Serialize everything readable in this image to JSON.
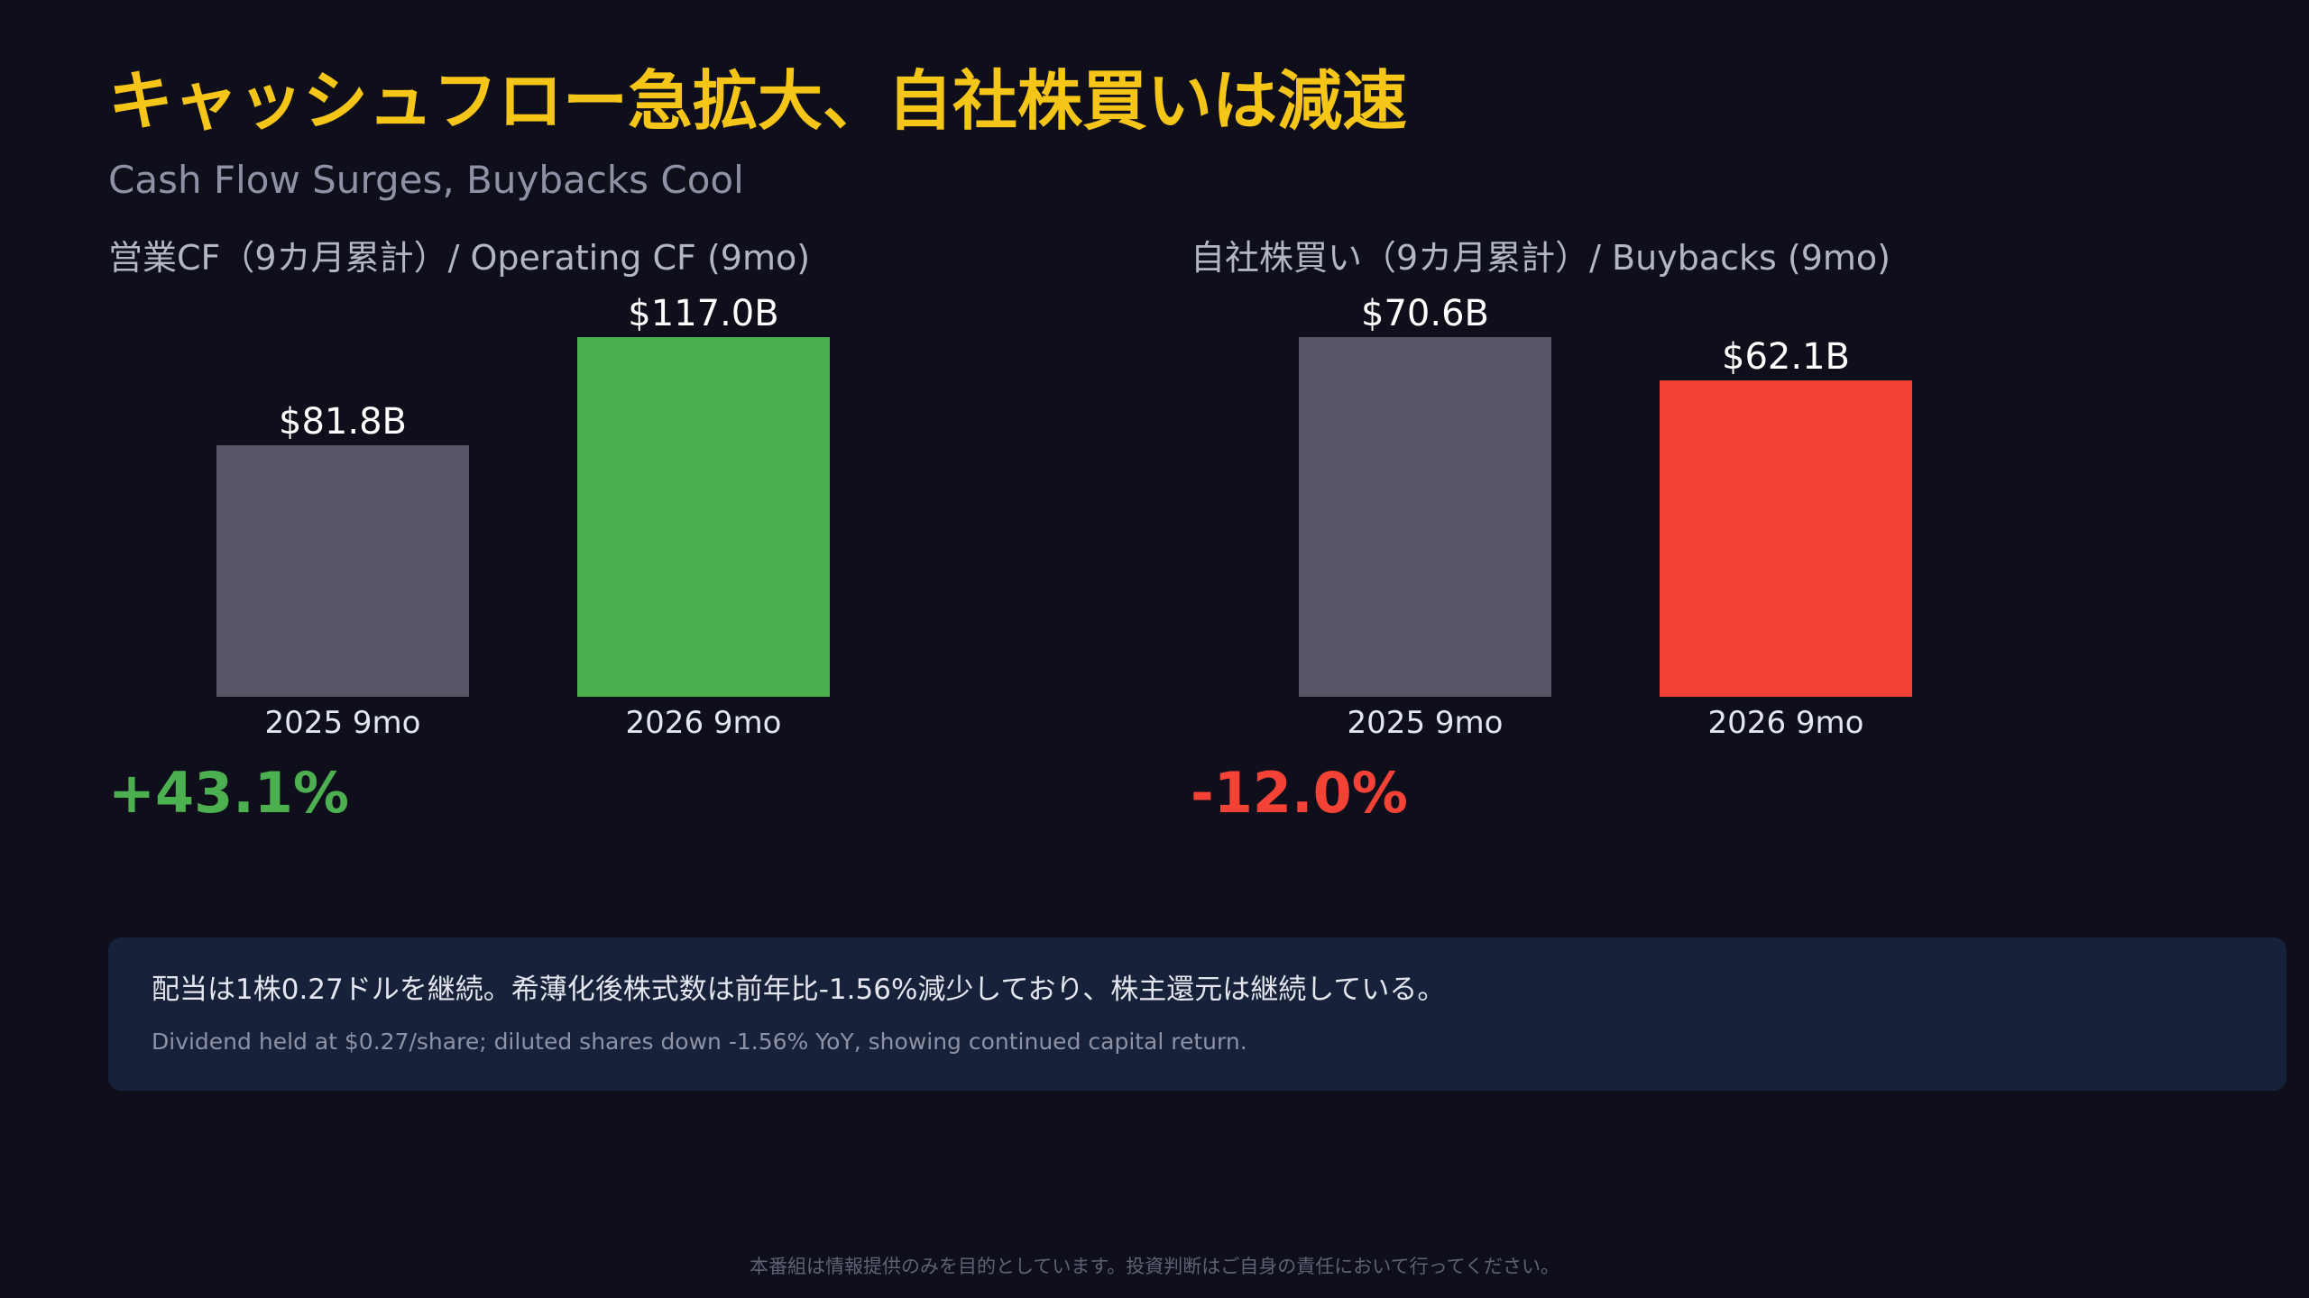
{
  "header": {
    "title": "キャッシュフロー急拡大、自社株買いは減速",
    "subtitle": "Cash Flow Surges, Buybacks Cool"
  },
  "colors": {
    "background": "#0f0f1c",
    "title": "#f5c518",
    "prior_bar": "#575667",
    "increase": "#4caf50",
    "decrease": "#f44336",
    "note_background": "#172139"
  },
  "chart_data": [
    {
      "type": "bar",
      "title": "営業CF（9カ月累計）/ Operating CF (9mo)",
      "categories": [
        "2025 9mo",
        "2026 9mo"
      ],
      "values": [
        81.8,
        117.0
      ],
      "value_labels": [
        "$81.8B",
        "$117.0B"
      ],
      "bar_colors": [
        "#575667",
        "#4caf50"
      ],
      "unit": "$B",
      "ylim": [
        0,
        117.0
      ],
      "grid": false,
      "change_label": "+43.1%",
      "change_color": "#4caf50"
    },
    {
      "type": "bar",
      "title": "自社株買い（9カ月累計）/ Buybacks (9mo)",
      "categories": [
        "2025 9mo",
        "2026 9mo"
      ],
      "values": [
        70.6,
        62.1
      ],
      "value_labels": [
        "$70.6B",
        "$62.1B"
      ],
      "bar_colors": [
        "#575667",
        "#f44336"
      ],
      "unit": "$B",
      "ylim": [
        0,
        70.6
      ],
      "grid": false,
      "change_label": "-12.0%",
      "change_color": "#f44336"
    }
  ],
  "note": {
    "jp": "配当は1株0.27ドルを継続。希薄化後株式数は前年比-1.56%減少しており、株主還元は継続している。",
    "en": "Dividend held at $0.27/share; diluted shares down -1.56% YoY, showing continued capital return."
  },
  "footer": {
    "disclaimer": "本番組は情報提供のみを目的としています。投資判断はご自身の責任において行ってください。"
  }
}
